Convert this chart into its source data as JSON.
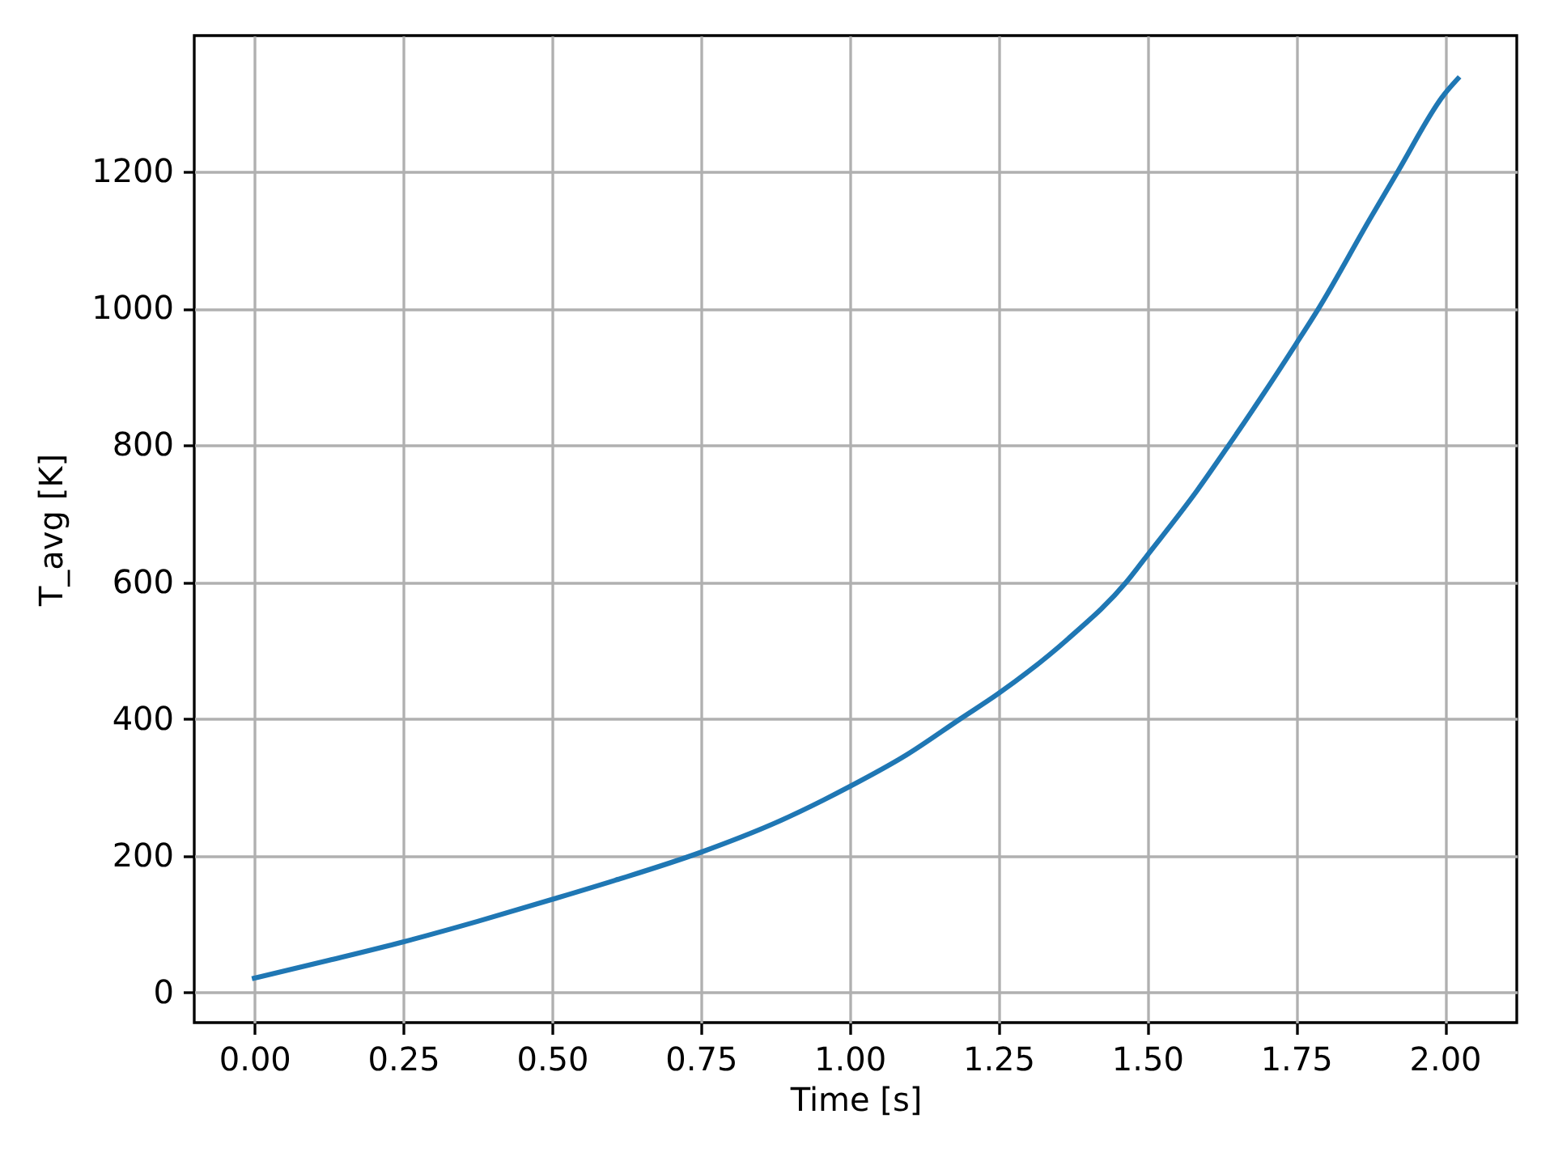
{
  "chart_data": {
    "type": "line",
    "xlabel": "Time [s]",
    "ylabel": "T_avg [K]",
    "x": [
      0,
      0.125,
      0.25,
      0.375,
      0.5,
      0.606,
      0.75,
      0.878,
      1.0,
      1.095,
      1.186,
      1.25,
      1.367,
      1.465,
      1.5,
      1.584,
      1.637,
      1.693,
      1.75,
      1.788,
      1.875,
      1.921,
      2.0,
      2.022
    ],
    "series": [
      {
        "color": "#1f77b4",
        "values": [
          21,
          47,
          74,
          104,
          136,
          164,
          205,
          249,
          301,
          347,
          400,
          437,
          517,
          600,
          639,
          734,
          800,
          872,
          948,
          1000,
          1132,
          1200,
          1314,
          1336
        ]
      }
    ],
    "xlim": [
      -0.101,
      2.121
    ],
    "ylim": [
      -44,
      1399
    ],
    "xticks": [
      {
        "value": 0,
        "label": "0.00"
      },
      {
        "value": 0.25,
        "label": "0.25"
      },
      {
        "value": 0.5,
        "label": "0.50"
      },
      {
        "value": 0.75,
        "label": "0.75"
      },
      {
        "value": 1,
        "label": "1.00"
      },
      {
        "value": 1.25,
        "label": "1.25"
      },
      {
        "value": 1.5,
        "label": "1.50"
      },
      {
        "value": 1.75,
        "label": "1.75"
      },
      {
        "value": 2,
        "label": "2.00"
      }
    ],
    "yticks": [
      0,
      200,
      400,
      600,
      800,
      1000,
      1200
    ],
    "grid": true
  }
}
